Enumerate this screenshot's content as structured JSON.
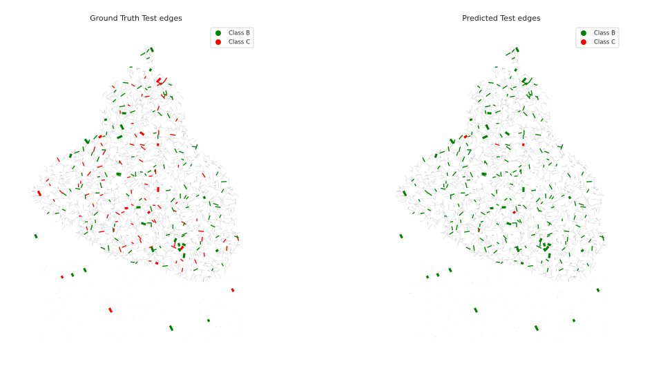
{
  "panels": [
    {
      "title": "Ground Truth Test edges",
      "legend": [
        {
          "name": "Class B",
          "color": "#008000"
        },
        {
          "name": "Class C",
          "color": "#ff0000"
        }
      ]
    },
    {
      "title": "Predicted Test edges",
      "legend": [
        {
          "name": "Class B",
          "color": "#008000"
        },
        {
          "name": "Class C",
          "color": "#ff0000"
        }
      ]
    }
  ]
}
